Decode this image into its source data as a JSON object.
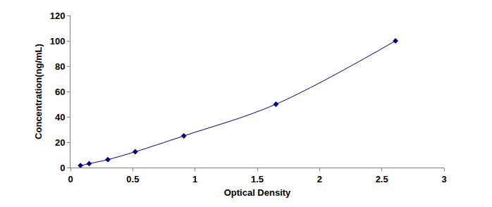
{
  "chart_data": {
    "type": "line",
    "x_label": "Optical Density",
    "y_label": "Concentration(ng/mL)",
    "x": [
      0.08,
      0.15,
      0.3,
      0.52,
      0.91,
      1.65,
      2.61
    ],
    "values": [
      1.6,
      3.1,
      6.3,
      12.5,
      25,
      50,
      100
    ],
    "color": "#000080",
    "marker": "diamond",
    "line_style": "solid",
    "xlim": [
      0,
      3
    ],
    "xticks": [
      0,
      0.5,
      1,
      1.5,
      2,
      2.5,
      3
    ],
    "ylim": [
      0,
      120
    ],
    "yticks": [
      0,
      20,
      40,
      60,
      80,
      100,
      120
    ],
    "grid": false
  }
}
